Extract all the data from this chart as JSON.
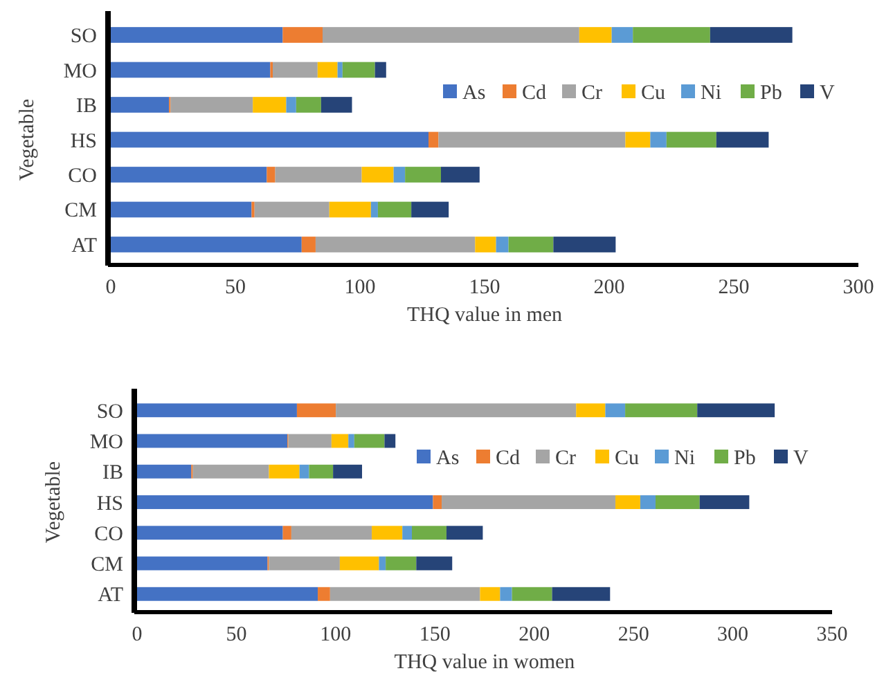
{
  "chart_data": [
    {
      "type": "bar",
      "orientation": "horizontal",
      "stacked": true,
      "xlabel": "THQ value in men",
      "ylabel": "Vegetable",
      "categories": [
        "SO",
        "MO",
        "IB",
        "HS",
        "CO",
        "CM",
        "AT"
      ],
      "xlim": [
        0,
        300
      ],
      "xticks": [
        0,
        50,
        100,
        150,
        200,
        250,
        300
      ],
      "legend": "right",
      "grid": false,
      "series": [
        {
          "name": "As",
          "color": "#4472c4",
          "values": [
            69,
            64,
            23.4,
            127.5,
            62.6,
            56.5,
            76.6
          ]
        },
        {
          "name": "Cd",
          "color": "#ed7d31",
          "values": [
            16,
            1,
            0.6,
            4,
            3.4,
            1.2,
            5.6
          ]
        },
        {
          "name": "Cr",
          "color": "#a5a5a5",
          "values": [
            103,
            18,
            33,
            75,
            34.7,
            30,
            64
          ]
        },
        {
          "name": "Cu",
          "color": "#ffc000",
          "values": [
            13,
            8,
            13.4,
            10,
            12.8,
            16.7,
            8.4
          ]
        },
        {
          "name": "Ni",
          "color": "#5b9bd5",
          "values": [
            8.5,
            2,
            4,
            6.5,
            4.6,
            2.8,
            5
          ]
        },
        {
          "name": "Pb",
          "color": "#70ad47",
          "values": [
            31,
            13,
            10,
            20,
            14.4,
            13.4,
            18
          ]
        },
        {
          "name": "V",
          "color": "#264478",
          "values": [
            33,
            4.5,
            12.4,
            21,
            15.5,
            15,
            25
          ]
        }
      ]
    },
    {
      "type": "bar",
      "orientation": "horizontal",
      "stacked": true,
      "xlabel": "THQ value in women",
      "ylabel": "Vegetable",
      "categories": [
        "SO",
        "MO",
        "IB",
        "HS",
        "CO",
        "CM",
        "AT"
      ],
      "xlim": [
        0,
        350
      ],
      "xticks": [
        0,
        50,
        100,
        150,
        200,
        250,
        300,
        350
      ],
      "legend": "right",
      "grid": false,
      "series": [
        {
          "name": "As",
          "color": "#4472c4",
          "values": [
            80.5,
            75.7,
            27.3,
            149,
            73.4,
            65.7,
            91
          ]
        },
        {
          "name": "Cd",
          "color": "#ed7d31",
          "values": [
            19.6,
            0.5,
            0.8,
            4.4,
            4.3,
            0.7,
            6.2
          ]
        },
        {
          "name": "Cr",
          "color": "#a5a5a5",
          "values": [
            121,
            21.7,
            38.3,
            87.5,
            40.5,
            35.7,
            75.5
          ]
        },
        {
          "name": "Cu",
          "color": "#ffc000",
          "values": [
            14.7,
            8.5,
            15.4,
            12.5,
            15.4,
            19.7,
            10.1
          ]
        },
        {
          "name": "Ni",
          "color": "#5b9bd5",
          "values": [
            10,
            3,
            4.8,
            7.7,
            4.8,
            3.4,
            6
          ]
        },
        {
          "name": "Pb",
          "color": "#70ad47",
          "values": [
            36.3,
            15.2,
            12.1,
            22.2,
            17.4,
            15.4,
            20.2
          ]
        },
        {
          "name": "V",
          "color": "#264478",
          "values": [
            39,
            5.5,
            14.6,
            25,
            18.3,
            18.1,
            29.2
          ]
        }
      ]
    }
  ]
}
